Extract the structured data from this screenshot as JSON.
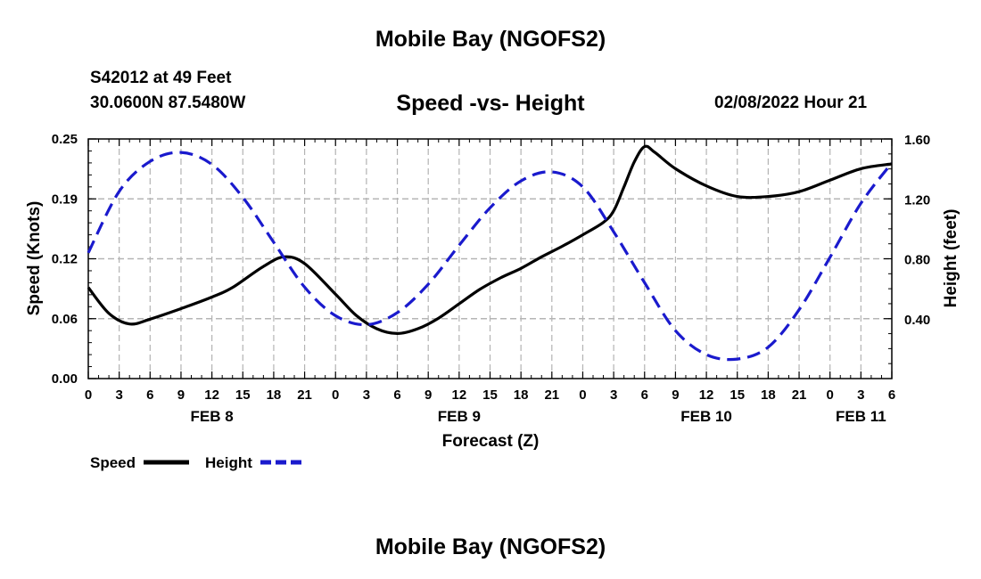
{
  "page": {
    "title": "Mobile Bay (NGOFS2)",
    "station_line": "S42012 at 49 Feet",
    "coords_line": "30.0600N  87.5480W",
    "forecast_time": "02/08/2022 Hour 21",
    "footer_title": "Mobile Bay (NGOFS2)"
  },
  "colors": {
    "speed": "#000000",
    "height": "#1a1acd",
    "grid": "#b3b3b3"
  },
  "chart_data": {
    "type": "line",
    "title": "Speed -vs- Height",
    "xlabel": "Forecast (Z)",
    "ylabel": "Speed (Knots)",
    "ylabel_right": "Height (feet)",
    "x_range_hours": [
      0,
      78
    ],
    "ylim": [
      0,
      0.25
    ],
    "ylim_right": [
      0,
      1.6
    ],
    "grid": true,
    "y_ticks": [
      "0.00",
      "0.06",
      "0.12",
      "0.19",
      "0.25"
    ],
    "y_tick_values": [
      0,
      0.0625,
      0.125,
      0.1875,
      0.25
    ],
    "y_ticks_right": [
      "0.40",
      "0.80",
      "1.20",
      "1.60"
    ],
    "y_tick_values_right": [
      0.4,
      0.8,
      1.2,
      1.6
    ],
    "x_tick_labels": [
      "0",
      "3",
      "6",
      "9",
      "12",
      "15",
      "18",
      "21",
      "0",
      "3",
      "6",
      "9",
      "12",
      "15",
      "18",
      "21",
      "0",
      "3",
      "6",
      "9",
      "12",
      "15",
      "18",
      "21",
      "0",
      "3",
      "6"
    ],
    "date_labels": [
      {
        "label": "FEB 8",
        "hour": 12
      },
      {
        "label": "FEB 9",
        "hour": 36
      },
      {
        "label": "FEB 10",
        "hour": 60
      },
      {
        "label": "FEB 11",
        "hour": 75
      }
    ],
    "series": [
      {
        "name": "Speed",
        "axis": "left",
        "style": "solid",
        "x": [
          0,
          2,
          4,
          6,
          9,
          12,
          14,
          17,
          19,
          21,
          24,
          26,
          28,
          30,
          32,
          34,
          36,
          38,
          40,
          42,
          44,
          46,
          48,
          50,
          51,
          52,
          53,
          54,
          55,
          57,
          60,
          63,
          66,
          69,
          72,
          75,
          78
        ],
        "y": [
          0.095,
          0.068,
          0.057,
          0.062,
          0.073,
          0.085,
          0.095,
          0.117,
          0.127,
          0.12,
          0.088,
          0.066,
          0.052,
          0.047,
          0.052,
          0.063,
          0.078,
          0.093,
          0.105,
          0.115,
          0.127,
          0.138,
          0.15,
          0.163,
          0.175,
          0.2,
          0.226,
          0.242,
          0.236,
          0.219,
          0.201,
          0.19,
          0.19,
          0.195,
          0.207,
          0.219,
          0.224
        ]
      },
      {
        "name": "Height",
        "axis": "right",
        "style": "dashed",
        "x": [
          0,
          3,
          6,
          9,
          12,
          15,
          18,
          21,
          24,
          27,
          30,
          33,
          36,
          39,
          42,
          45,
          48,
          51,
          54,
          57,
          60,
          63,
          66,
          69,
          72,
          75,
          78
        ],
        "y": [
          0.84,
          1.25,
          1.45,
          1.51,
          1.43,
          1.21,
          0.91,
          0.61,
          0.42,
          0.36,
          0.44,
          0.63,
          0.89,
          1.14,
          1.32,
          1.38,
          1.28,
          0.98,
          0.64,
          0.32,
          0.16,
          0.13,
          0.21,
          0.46,
          0.81,
          1.17,
          1.44
        ]
      }
    ],
    "legend": [
      {
        "label": "Speed",
        "style": "solid"
      },
      {
        "label": "Height",
        "style": "dashed"
      }
    ]
  }
}
